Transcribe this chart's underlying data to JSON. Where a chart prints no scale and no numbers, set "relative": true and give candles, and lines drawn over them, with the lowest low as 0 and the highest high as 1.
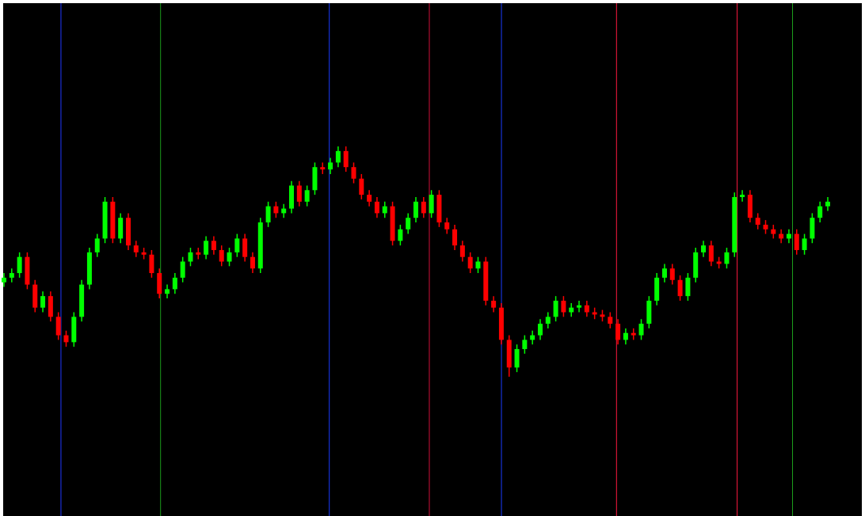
{
  "chart_data": {
    "type": "candlestick",
    "relative": true,
    "categories": [
      null,
      null,
      null,
      null,
      null,
      null,
      null,
      null,
      null,
      null,
      null,
      null,
      null,
      null,
      null,
      null,
      null,
      null,
      null,
      null,
      null,
      null,
      null,
      null,
      null,
      null,
      null,
      null,
      null,
      null,
      null,
      null,
      null,
      null,
      null,
      null,
      null,
      null,
      null,
      null,
      null,
      null,
      null,
      null,
      null,
      null,
      null,
      null,
      null,
      null,
      null,
      null,
      null,
      null,
      null,
      null,
      null,
      null,
      null,
      null,
      null,
      null,
      null,
      null,
      null,
      null,
      null,
      null,
      null,
      null,
      null,
      null,
      null,
      null,
      null,
      null,
      null,
      null,
      null,
      null,
      null,
      null,
      null,
      null,
      null,
      null,
      null,
      null,
      null,
      null,
      null,
      null,
      null,
      null,
      null,
      null,
      null,
      null,
      null,
      null,
      null,
      null,
      null,
      null,
      null,
      null,
      null
    ],
    "ohlc": [
      [
        0.41,
        0.45,
        0.39,
        0.43
      ],
      [
        0.43,
        0.47,
        0.41,
        0.45
      ],
      [
        0.45,
        0.54,
        0.43,
        0.52
      ],
      [
        0.52,
        0.54,
        0.38,
        0.4
      ],
      [
        0.4,
        0.42,
        0.28,
        0.3
      ],
      [
        0.3,
        0.37,
        0.28,
        0.35
      ],
      [
        0.35,
        0.37,
        0.24,
        0.26
      ],
      [
        0.26,
        0.28,
        0.16,
        0.18
      ],
      [
        0.18,
        0.2,
        0.13,
        0.15
      ],
      [
        0.15,
        0.28,
        0.13,
        0.26
      ],
      [
        0.26,
        0.42,
        0.24,
        0.4
      ],
      [
        0.4,
        0.56,
        0.38,
        0.54
      ],
      [
        0.54,
        0.62,
        0.52,
        0.6
      ],
      [
        0.6,
        0.78,
        0.58,
        0.76
      ],
      [
        0.76,
        0.78,
        0.58,
        0.6
      ],
      [
        0.6,
        0.71,
        0.58,
        0.69
      ],
      [
        0.69,
        0.71,
        0.55,
        0.57
      ],
      [
        0.57,
        0.59,
        0.52,
        0.54
      ],
      [
        0.54,
        0.56,
        0.51,
        0.53
      ],
      [
        0.53,
        0.55,
        0.43,
        0.45
      ],
      [
        0.45,
        0.47,
        0.34,
        0.36
      ],
      [
        0.36,
        0.4,
        0.34,
        0.38
      ],
      [
        0.38,
        0.45,
        0.36,
        0.43
      ],
      [
        0.43,
        0.52,
        0.41,
        0.5
      ],
      [
        0.5,
        0.56,
        0.48,
        0.54
      ],
      [
        0.54,
        0.56,
        0.51,
        0.53
      ],
      [
        0.53,
        0.61,
        0.51,
        0.59
      ],
      [
        0.59,
        0.61,
        0.53,
        0.55
      ],
      [
        0.55,
        0.57,
        0.48,
        0.5
      ],
      [
        0.5,
        0.56,
        0.48,
        0.54
      ],
      [
        0.54,
        0.62,
        0.52,
        0.6
      ],
      [
        0.6,
        0.62,
        0.5,
        0.52
      ],
      [
        0.52,
        0.54,
        0.45,
        0.47
      ],
      [
        0.47,
        0.69,
        0.45,
        0.67
      ],
      [
        0.67,
        0.76,
        0.65,
        0.74
      ],
      [
        0.74,
        0.76,
        0.69,
        0.71
      ],
      [
        0.71,
        0.75,
        0.69,
        0.73
      ],
      [
        0.73,
        0.85,
        0.71,
        0.83
      ],
      [
        0.83,
        0.85,
        0.74,
        0.76
      ],
      [
        0.76,
        0.83,
        0.74,
        0.81
      ],
      [
        0.81,
        0.93,
        0.79,
        0.91
      ],
      [
        0.91,
        0.93,
        0.88,
        0.9
      ],
      [
        0.9,
        0.95,
        0.88,
        0.93
      ],
      [
        0.93,
        1.0,
        0.91,
        0.98
      ],
      [
        0.98,
        1.0,
        0.89,
        0.91
      ],
      [
        0.91,
        0.93,
        0.84,
        0.86
      ],
      [
        0.86,
        0.88,
        0.77,
        0.79
      ],
      [
        0.79,
        0.81,
        0.74,
        0.76
      ],
      [
        0.76,
        0.78,
        0.69,
        0.71
      ],
      [
        0.71,
        0.76,
        0.69,
        0.74
      ],
      [
        0.74,
        0.76,
        0.57,
        0.59
      ],
      [
        0.59,
        0.66,
        0.57,
        0.64
      ],
      [
        0.64,
        0.71,
        0.62,
        0.69
      ],
      [
        0.69,
        0.78,
        0.67,
        0.76
      ],
      [
        0.76,
        0.78,
        0.69,
        0.71
      ],
      [
        0.71,
        0.81,
        0.69,
        0.79
      ],
      [
        0.79,
        0.81,
        0.65,
        0.67
      ],
      [
        0.67,
        0.69,
        0.62,
        0.64
      ],
      [
        0.64,
        0.66,
        0.55,
        0.57
      ],
      [
        0.57,
        0.59,
        0.5,
        0.52
      ],
      [
        0.52,
        0.54,
        0.45,
        0.47
      ],
      [
        0.47,
        0.52,
        0.45,
        0.5
      ],
      [
        0.5,
        0.52,
        0.31,
        0.33
      ],
      [
        0.33,
        0.35,
        0.28,
        0.3
      ],
      [
        0.3,
        0.32,
        0.14,
        0.16
      ],
      [
        0.16,
        0.18,
        0.0,
        0.04
      ],
      [
        0.04,
        0.14,
        0.02,
        0.12
      ],
      [
        0.12,
        0.18,
        0.1,
        0.16
      ],
      [
        0.16,
        0.2,
        0.14,
        0.18
      ],
      [
        0.18,
        0.25,
        0.16,
        0.23
      ],
      [
        0.23,
        0.28,
        0.21,
        0.26
      ],
      [
        0.26,
        0.35,
        0.24,
        0.33
      ],
      [
        0.33,
        0.35,
        0.26,
        0.28
      ],
      [
        0.28,
        0.32,
        0.26,
        0.3
      ],
      [
        0.3,
        0.33,
        0.28,
        0.31
      ],
      [
        0.31,
        0.33,
        0.26,
        0.28
      ],
      [
        0.28,
        0.3,
        0.25,
        0.27
      ],
      [
        0.27,
        0.29,
        0.24,
        0.26
      ],
      [
        0.26,
        0.28,
        0.21,
        0.23
      ],
      [
        0.23,
        0.25,
        0.14,
        0.16
      ],
      [
        0.16,
        0.21,
        0.14,
        0.19
      ],
      [
        0.19,
        0.21,
        0.16,
        0.18
      ],
      [
        0.18,
        0.25,
        0.16,
        0.23
      ],
      [
        0.23,
        0.35,
        0.21,
        0.33
      ],
      [
        0.33,
        0.45,
        0.31,
        0.43
      ],
      [
        0.43,
        0.49,
        0.41,
        0.47
      ],
      [
        0.47,
        0.49,
        0.4,
        0.42
      ],
      [
        0.42,
        0.44,
        0.33,
        0.35
      ],
      [
        0.35,
        0.45,
        0.33,
        0.43
      ],
      [
        0.43,
        0.56,
        0.41,
        0.54
      ],
      [
        0.54,
        0.59,
        0.52,
        0.57
      ],
      [
        0.57,
        0.59,
        0.48,
        0.5
      ],
      [
        0.5,
        0.52,
        0.47,
        0.49
      ],
      [
        0.49,
        0.56,
        0.47,
        0.54
      ],
      [
        0.54,
        0.8,
        0.52,
        0.78
      ],
      [
        0.78,
        0.81,
        0.76,
        0.79
      ],
      [
        0.79,
        0.81,
        0.67,
        0.69
      ],
      [
        0.69,
        0.71,
        0.64,
        0.66
      ],
      [
        0.66,
        0.68,
        0.62,
        0.64
      ],
      [
        0.64,
        0.66,
        0.6,
        0.62
      ],
      [
        0.62,
        0.64,
        0.58,
        0.6
      ],
      [
        0.6,
        0.64,
        0.58,
        0.62
      ],
      [
        0.62,
        0.64,
        0.53,
        0.55
      ],
      [
        0.55,
        0.62,
        0.53,
        0.6
      ],
      [
        0.6,
        0.71,
        0.58,
        0.69
      ],
      [
        0.69,
        0.76,
        0.67,
        0.74
      ],
      [
        0.74,
        0.78,
        0.72,
        0.76
      ]
    ],
    "colors": [
      "#00ff00",
      "#00ff00",
      "#00ff00",
      "#ff0000",
      "#ff0000",
      "#00ff00",
      "#ff0000",
      "#ff0000",
      "#ff0000",
      "#00ff00",
      "#00ff00",
      "#00ff00",
      "#00ff00",
      "#00ff00",
      "#ff0000",
      "#00ff00",
      "#ff0000",
      "#ff0000",
      "#ff0000",
      "#ff0000",
      "#ff0000",
      "#00ff00",
      "#00ff00",
      "#00ff00",
      "#00ff00",
      "#ff0000",
      "#00ff00",
      "#ff0000",
      "#ff0000",
      "#00ff00",
      "#00ff00",
      "#ff0000",
      "#ff0000",
      "#00ff00",
      "#00ff00",
      "#ff0000",
      "#00ff00",
      "#00ff00",
      "#ff0000",
      "#00ff00",
      "#00ff00",
      "#ff0000",
      "#00ff00",
      "#00ff00",
      "#ff0000",
      "#ff0000",
      "#ff0000",
      "#ff0000",
      "#ff0000",
      "#00ff00",
      "#ff0000",
      "#00ff00",
      "#00ff00",
      "#00ff00",
      "#ff0000",
      "#00ff00",
      "#ff0000",
      "#ff0000",
      "#ff0000",
      "#ff0000",
      "#ff0000",
      "#00ff00",
      "#ff0000",
      "#ff0000",
      "#ff0000",
      "#ff0000",
      "#00ff00",
      "#00ff00",
      "#00ff00",
      "#00ff00",
      "#00ff00",
      "#00ff00",
      "#ff0000",
      "#00ff00",
      "#00ff00",
      "#ff0000",
      "#ff0000",
      "#ff0000",
      "#ff0000",
      "#ff0000",
      "#00ff00",
      "#ff0000",
      "#00ff00",
      "#00ff00",
      "#00ff00",
      "#00ff00",
      "#ff0000",
      "#ff0000",
      "#00ff00",
      "#00ff00",
      "#00ff00",
      "#ff0000",
      "#ff0000",
      "#00ff00",
      "#00ff00",
      "#00ff00",
      "#ff0000",
      "#ff0000",
      "#ff0000",
      "#ff0000",
      "#ff0000",
      "#00ff00",
      "#ff0000",
      "#00ff00",
      "#00ff00",
      "#00ff00",
      "#00ff00"
    ]
  }
}
